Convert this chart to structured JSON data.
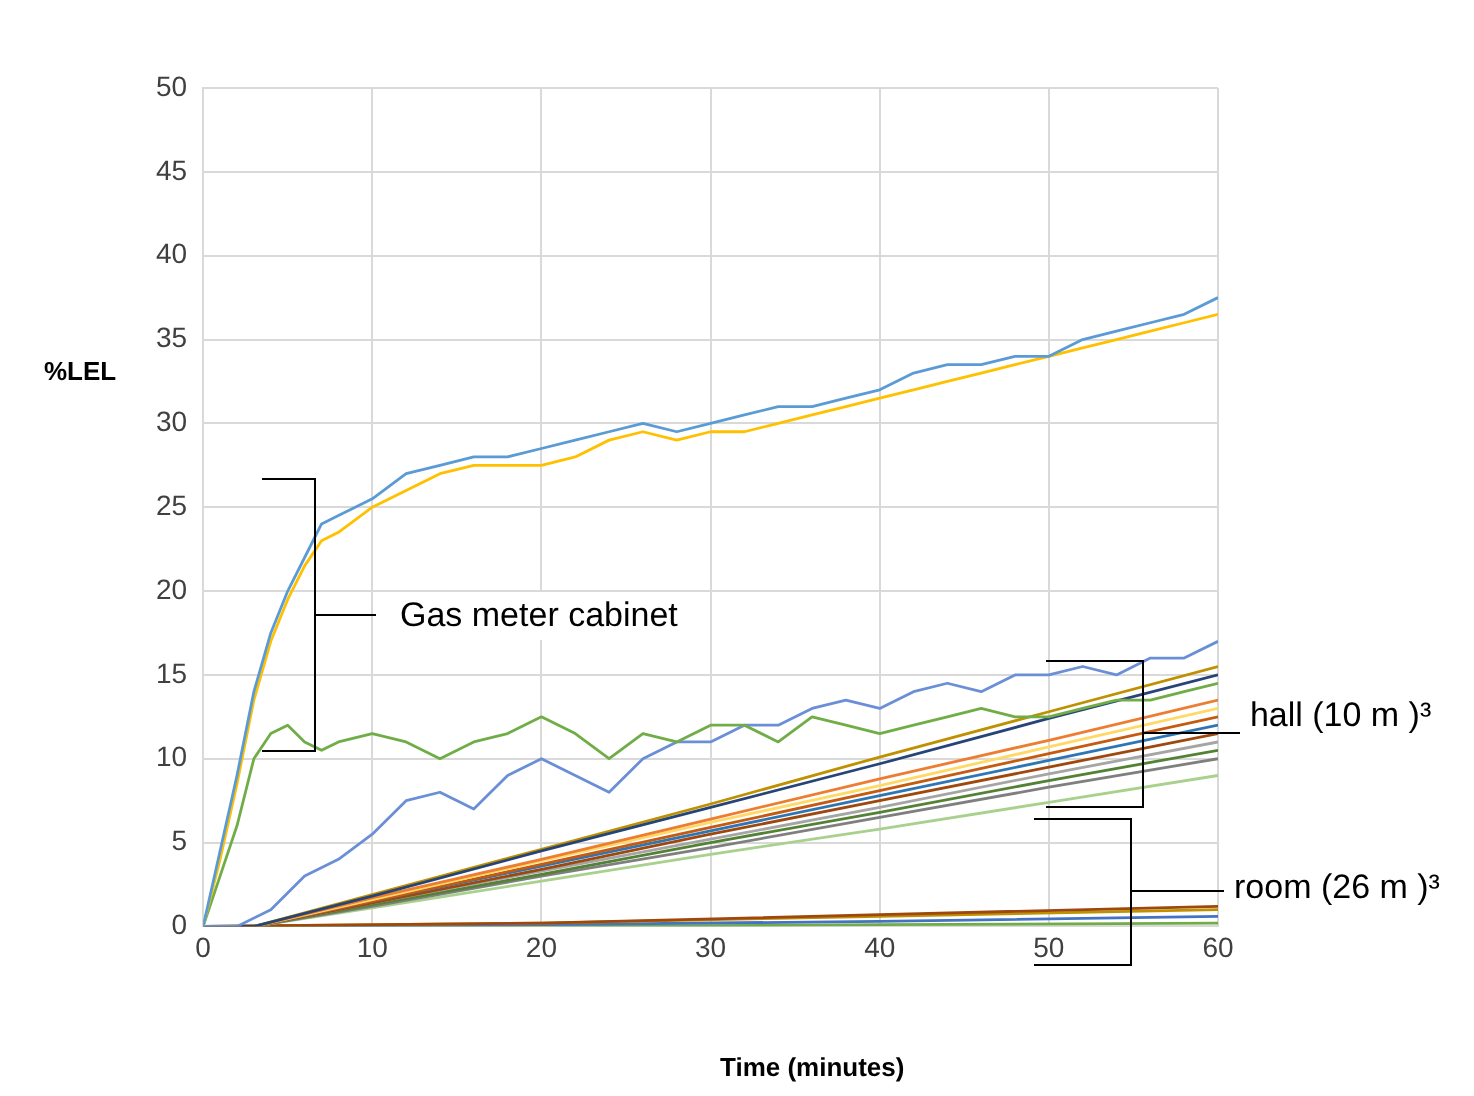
{
  "chart_data": {
    "type": "line",
    "xlabel": "Time (minutes)",
    "ylabel": "%LEL",
    "xlim": [
      0,
      60
    ],
    "ylim": [
      0,
      50
    ],
    "xticks": [
      0,
      10,
      20,
      30,
      40,
      50,
      60
    ],
    "yticks": [
      0,
      5,
      10,
      15,
      20,
      25,
      30,
      35,
      40,
      45,
      50
    ],
    "grid": true,
    "legend": false,
    "marker": "none",
    "line_style": "solid",
    "annotations": [
      "Gas meter cabinet",
      {
        "text": "hall (10 m )³",
        "x": 55.5,
        "y": 11.6
      },
      "room (26 m )³"
    ],
    "series": [
      {
        "color": "#5b9bd5",
        "x": [
          0,
          1,
          2,
          3,
          4,
          5,
          6,
          7,
          8,
          10,
          12,
          14,
          16,
          18,
          20,
          22,
          24,
          26,
          28,
          30,
          32,
          34,
          36,
          38,
          40,
          42,
          44,
          46,
          48,
          50,
          52,
          54,
          56,
          58,
          60
        ],
        "values": [
          0,
          4.5,
          9,
          14,
          17.5,
          20,
          22,
          24,
          24.5,
          25.5,
          27,
          27.5,
          28,
          28,
          28.5,
          29,
          29.5,
          30,
          29.5,
          30,
          30.5,
          31,
          31,
          31.5,
          32,
          33,
          33.5,
          33.5,
          34,
          34,
          35,
          35.5,
          36,
          36.5,
          37.5
        ]
      },
      {
        "color": "#ffc000",
        "x": [
          0,
          1,
          2,
          3,
          4,
          5,
          6,
          7,
          8,
          10,
          12,
          14,
          16,
          18,
          20,
          22,
          24,
          26,
          28,
          30,
          32,
          34,
          36,
          38,
          40,
          42,
          44,
          46,
          48,
          50,
          52,
          54,
          56,
          58,
          60
        ],
        "values": [
          0,
          4,
          8.5,
          13.5,
          17,
          19.5,
          21.5,
          23,
          23.5,
          25,
          26,
          27,
          27.5,
          27.5,
          27.5,
          28,
          29,
          29.5,
          29,
          29.5,
          29.5,
          30,
          30.5,
          31,
          31.5,
          32,
          32.5,
          33,
          33.5,
          34,
          34.5,
          35,
          35.5,
          36,
          36.5
        ]
      },
      {
        "color": "#70ad47",
        "x": [
          0,
          1,
          2,
          3,
          4,
          5,
          6,
          7,
          8,
          10,
          12,
          14,
          16,
          18,
          20,
          22,
          24,
          26,
          28,
          30,
          32,
          34,
          36,
          38,
          40,
          42,
          44,
          46,
          48,
          50,
          52,
          54,
          56,
          58,
          60
        ],
        "values": [
          0,
          3,
          6,
          10,
          11.5,
          12,
          11,
          10.5,
          11,
          11.5,
          11,
          10,
          11,
          11.5,
          12.5,
          11.5,
          10,
          11.5,
          11,
          12,
          12,
          11,
          12.5,
          12,
          11.5,
          12,
          12.5,
          13,
          12.5,
          12.5,
          13,
          13.5,
          13.5,
          14,
          14.5
        ]
      },
      {
        "color": "#6a8fd6",
        "x": [
          0,
          2,
          4,
          6,
          8,
          10,
          12,
          14,
          16,
          18,
          20,
          22,
          24,
          26,
          28,
          30,
          32,
          34,
          36,
          38,
          40,
          42,
          44,
          46,
          48,
          50,
          52,
          54,
          56,
          58,
          60
        ],
        "values": [
          0,
          0,
          1,
          3,
          4,
          5.5,
          7.5,
          8,
          7,
          9,
          10,
          9,
          8,
          10,
          11,
          11,
          12,
          12,
          13,
          13.5,
          13,
          14,
          14.5,
          14,
          15,
          15,
          15.5,
          15,
          16,
          16,
          17
        ]
      },
      {
        "color": "#264478",
        "x": [
          0,
          3,
          10,
          20,
          30,
          40,
          50,
          60
        ],
        "values": [
          0,
          0,
          1.8,
          4.5,
          7.1,
          9.7,
          12.4,
          15
        ]
      },
      {
        "color": "#bf9000",
        "x": [
          0,
          3,
          10,
          20,
          30,
          40,
          50,
          60
        ],
        "values": [
          0,
          0,
          1.9,
          4.6,
          7.3,
          10.1,
          12.8,
          15.5
        ]
      },
      {
        "color": "#ed7d31",
        "x": [
          0,
          3,
          10,
          20,
          30,
          40,
          50,
          60
        ],
        "values": [
          0,
          0,
          1.7,
          4.0,
          6.4,
          8.8,
          11.1,
          13.5
        ]
      },
      {
        "color": "#ffd966",
        "x": [
          0,
          3,
          10,
          20,
          30,
          40,
          50,
          60
        ],
        "values": [
          0,
          0,
          1.6,
          3.9,
          6.2,
          8.4,
          10.7,
          13
        ]
      },
      {
        "color": "#c55a11",
        "x": [
          0,
          3,
          10,
          20,
          30,
          40,
          50,
          60
        ],
        "values": [
          0,
          0,
          1.5,
          3.7,
          5.9,
          8.1,
          10.3,
          12.5
        ]
      },
      {
        "color": "#2e75b6",
        "x": [
          0,
          3,
          10,
          20,
          30,
          40,
          50,
          60
        ],
        "values": [
          0,
          0,
          1.5,
          3.6,
          5.7,
          7.8,
          9.9,
          12
        ]
      },
      {
        "color": "#9e480e",
        "x": [
          0,
          3,
          10,
          20,
          30,
          40,
          50,
          60
        ],
        "values": [
          0,
          0,
          1.4,
          3.4,
          5.5,
          7.5,
          9.5,
          11.5
        ]
      },
      {
        "color": "#a5a5a5",
        "x": [
          0,
          3,
          10,
          20,
          30,
          40,
          50,
          60
        ],
        "values": [
          0,
          0,
          1.4,
          3.3,
          5.2,
          7.1,
          9.1,
          11
        ]
      },
      {
        "color": "#548235",
        "x": [
          0,
          3,
          10,
          20,
          30,
          40,
          50,
          60
        ],
        "values": [
          0,
          0,
          1.3,
          3.1,
          5.0,
          6.8,
          8.7,
          10.5
        ]
      },
      {
        "color": "#7f7f7f",
        "x": [
          0,
          3,
          10,
          20,
          30,
          40,
          50,
          60
        ],
        "values": [
          0,
          0,
          1.2,
          3.0,
          4.7,
          6.5,
          8.3,
          10
        ]
      },
      {
        "color": "#a9d18e",
        "x": [
          0,
          3,
          10,
          20,
          30,
          40,
          50,
          60
        ],
        "values": [
          0,
          0,
          1.1,
          2.7,
          4.3,
          5.8,
          7.4,
          9
        ]
      },
      {
        "color": "#9e480e",
        "x": [
          0,
          20,
          40,
          60
        ],
        "values": [
          0,
          0.2,
          0.7,
          1.2
        ]
      },
      {
        "color": "#bf9000",
        "x": [
          0,
          20,
          40,
          60
        ],
        "values": [
          0,
          0.2,
          0.6,
          1.0
        ]
      },
      {
        "color": "#4472c4",
        "x": [
          0,
          20,
          40,
          60
        ],
        "values": [
          0,
          0.1,
          0.3,
          0.6
        ]
      },
      {
        "color": "#70ad47",
        "x": [
          0,
          20,
          40,
          60
        ],
        "values": [
          0,
          0,
          0.1,
          0.2
        ]
      }
    ]
  }
}
